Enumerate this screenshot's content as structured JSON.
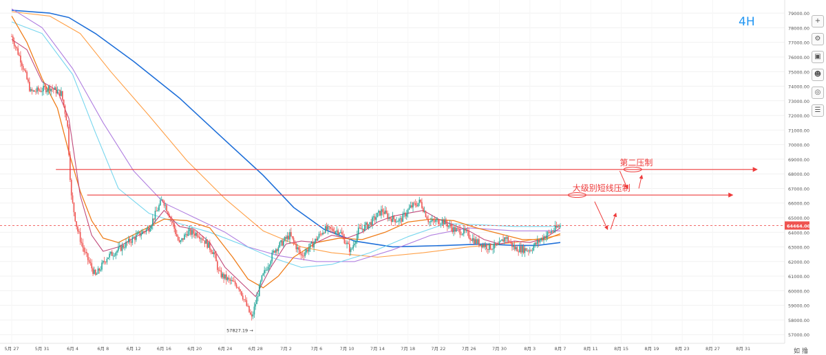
{
  "timeframe_label": "4H",
  "bottom_buttons": [
    "如",
    "撸"
  ],
  "chart_data": {
    "type": "candlestick",
    "title": "",
    "ylim": [
      56400,
      79900
    ],
    "y_ticks": [
      57000,
      58000,
      59000,
      60000,
      61000,
      62000,
      63000,
      64000,
      65000,
      66000,
      67000,
      68000,
      69000,
      70000,
      71000,
      72000,
      73000,
      74000,
      75000,
      76000,
      77000,
      78000,
      79000
    ],
    "y_tick_labels": [
      "57000.00",
      "58000.00",
      "59000.00",
      "60000.00",
      "61000.00",
      "62000.00",
      "63000.00",
      "64000.00",
      "65000.00",
      "66000.00",
      "67000.00",
      "68000.00",
      "69000.00",
      "70000.00",
      "71000.00",
      "72000.00",
      "73000.00",
      "74000.00",
      "75000.00",
      "76000.00",
      "77000.00",
      "78000.00",
      "79000.00"
    ],
    "x_tick_labels": [
      "5月 27",
      "5月 31",
      "6月 4",
      "6月 8",
      "6月 12",
      "6月 16",
      "6月 20",
      "6月 24",
      "6月 28",
      "7月 2",
      "7月 6",
      "7月 10",
      "7月 14",
      "7月 18",
      "7月 22",
      "7月 26",
      "7月 30",
      "8月 3",
      "8月 7",
      "8月 11",
      "8月 15",
      "8月 19",
      "8月 23",
      "8月 27",
      "8月 31"
    ],
    "x_tick_offsets_days": [
      0,
      4,
      8,
      12,
      16,
      20,
      24,
      28,
      32,
      36,
      40,
      44,
      48,
      52,
      56,
      60,
      64,
      68,
      72,
      76,
      80,
      84,
      88,
      92,
      96
    ],
    "last_day": 72,
    "current_price": 64464,
    "current_price_label": "64464.00",
    "low_marker": {
      "label": "57827.19 →",
      "price": 57827.19,
      "day": 31.5
    },
    "price_path": [
      [
        0,
        77400
      ],
      [
        1.2,
        75800
      ],
      [
        2.5,
        73600
      ],
      [
        3.5,
        73700
      ],
      [
        5,
        73900
      ],
      [
        6.5,
        73500
      ],
      [
        7.3,
        71500
      ],
      [
        7.8,
        66500
      ],
      [
        8.6,
        64200
      ],
      [
        9.5,
        62700
      ],
      [
        11,
        61000
      ],
      [
        12.5,
        62300
      ],
      [
        14,
        62800
      ],
      [
        16,
        63600
      ],
      [
        18,
        64300
      ],
      [
        19.8,
        66300
      ],
      [
        21,
        64800
      ],
      [
        22,
        63200
      ],
      [
        23,
        64000
      ],
      [
        24.5,
        63900
      ],
      [
        25.5,
        63300
      ],
      [
        26.5,
        62600
      ],
      [
        27.2,
        61200
      ],
      [
        28.5,
        60700
      ],
      [
        29.8,
        60300
      ],
      [
        31.5,
        58100
      ],
      [
        32.8,
        60800
      ],
      [
        34.5,
        62800
      ],
      [
        36.5,
        63800
      ],
      [
        38,
        62400
      ],
      [
        39.5,
        63200
      ],
      [
        41,
        64200
      ],
      [
        43,
        64100
      ],
      [
        44.5,
        62700
      ],
      [
        45.5,
        64100
      ],
      [
        47,
        64600
      ],
      [
        48.6,
        65500
      ],
      [
        49.5,
        65000
      ],
      [
        51,
        64800
      ],
      [
        52.3,
        65700
      ],
      [
        53.6,
        66100
      ],
      [
        54.8,
        64700
      ],
      [
        56.5,
        64800
      ],
      [
        58,
        64200
      ],
      [
        59.5,
        64000
      ],
      [
        60.8,
        63400
      ],
      [
        62.5,
        63000
      ],
      [
        63.8,
        63000
      ],
      [
        64.8,
        63700
      ],
      [
        66,
        62900
      ],
      [
        68,
        62800
      ],
      [
        69.8,
        63700
      ],
      [
        72,
        64464
      ]
    ],
    "moving_averages": [
      {
        "color": "#1e6fd9",
        "width": 1.6,
        "path": [
          [
            0,
            79200
          ],
          [
            5,
            79000
          ],
          [
            7.5,
            78700
          ],
          [
            11,
            77600
          ],
          [
            16,
            75700
          ],
          [
            22,
            73200
          ],
          [
            28,
            70300
          ],
          [
            33,
            67900
          ],
          [
            37,
            65700
          ],
          [
            41,
            64200
          ],
          [
            45,
            63400
          ],
          [
            50,
            63000
          ],
          [
            57,
            63100
          ],
          [
            62,
            63200
          ],
          [
            66,
            63100
          ],
          [
            69,
            63100
          ],
          [
            72,
            63300
          ]
        ]
      },
      {
        "color": "#ff9f45",
        "width": 1.1,
        "path": [
          [
            0,
            79100
          ],
          [
            5,
            78800
          ],
          [
            9,
            77600
          ],
          [
            13,
            75000
          ],
          [
            18,
            72000
          ],
          [
            23,
            68900
          ],
          [
            28,
            66300
          ],
          [
            33,
            64100
          ],
          [
            38,
            63000
          ],
          [
            42,
            62600
          ],
          [
            48,
            62300
          ],
          [
            54,
            62600
          ],
          [
            60,
            63000
          ],
          [
            66,
            63300
          ],
          [
            72,
            63800
          ]
        ]
      },
      {
        "color": "#b07ee0",
        "width": 1.1,
        "path": [
          [
            0,
            79300
          ],
          [
            4,
            78000
          ],
          [
            8,
            75200
          ],
          [
            12,
            71500
          ],
          [
            16,
            68200
          ],
          [
            20,
            66000
          ],
          [
            24,
            65000
          ],
          [
            28,
            64000
          ],
          [
            31,
            63000
          ],
          [
            35,
            62400
          ],
          [
            40,
            62000
          ],
          [
            45,
            62000
          ],
          [
            50,
            62800
          ],
          [
            55,
            63800
          ],
          [
            60,
            64300
          ],
          [
            66,
            64100
          ],
          [
            72,
            64100
          ]
        ]
      },
      {
        "color": "#76d6ee",
        "width": 1.1,
        "path": [
          [
            0,
            78400
          ],
          [
            4,
            77600
          ],
          [
            8,
            74800
          ],
          [
            11,
            70800
          ],
          [
            14,
            67000
          ],
          [
            18,
            65300
          ],
          [
            22,
            64600
          ],
          [
            26,
            64000
          ],
          [
            30,
            63200
          ],
          [
            34,
            62300
          ],
          [
            38,
            61600
          ],
          [
            42,
            61800
          ],
          [
            47,
            62600
          ],
          [
            52,
            63700
          ],
          [
            57,
            64600
          ],
          [
            62,
            64500
          ],
          [
            66,
            64400
          ],
          [
            72,
            64400
          ]
        ]
      },
      {
        "color": "#ef7c18",
        "width": 1.3,
        "path": [
          [
            0,
            78800
          ],
          [
            2,
            77000
          ],
          [
            4,
            74500
          ],
          [
            6,
            72500
          ],
          [
            7.5,
            69500
          ],
          [
            9,
            66800
          ],
          [
            10.5,
            64800
          ],
          [
            12,
            63600
          ],
          [
            14,
            63300
          ],
          [
            17,
            64100
          ],
          [
            20,
            64900
          ],
          [
            23,
            64800
          ],
          [
            26,
            64300
          ],
          [
            29,
            62300
          ],
          [
            31,
            60800
          ],
          [
            33,
            60200
          ],
          [
            35,
            61000
          ],
          [
            37,
            62300
          ],
          [
            40,
            63300
          ],
          [
            43,
            63600
          ],
          [
            46,
            63500
          ],
          [
            49,
            64000
          ],
          [
            52,
            64700
          ],
          [
            55,
            64900
          ],
          [
            58,
            64800
          ],
          [
            61,
            64300
          ],
          [
            64,
            63900
          ],
          [
            67,
            63500
          ],
          [
            70,
            63500
          ],
          [
            72,
            63900
          ]
        ]
      },
      {
        "color": "#c0487a",
        "width": 1.1,
        "path": [
          [
            0,
            77200
          ],
          [
            2,
            76500
          ],
          [
            4,
            74300
          ],
          [
            6,
            73700
          ],
          [
            7.5,
            71800
          ],
          [
            9,
            66500
          ],
          [
            10.5,
            63800
          ],
          [
            12,
            62700
          ],
          [
            14,
            63000
          ],
          [
            16,
            63600
          ],
          [
            18,
            64200
          ],
          [
            20,
            65500
          ],
          [
            22,
            64400
          ],
          [
            24,
            64200
          ],
          [
            26,
            63300
          ],
          [
            28,
            61600
          ],
          [
            30,
            60600
          ],
          [
            32,
            59600
          ],
          [
            34,
            61600
          ],
          [
            36,
            63200
          ],
          [
            38,
            63400
          ],
          [
            40,
            63300
          ],
          [
            42,
            63800
          ],
          [
            44,
            63600
          ],
          [
            46,
            64000
          ],
          [
            48,
            64700
          ],
          [
            50,
            65100
          ],
          [
            52,
            65300
          ],
          [
            54,
            65500
          ],
          [
            56,
            64900
          ],
          [
            58,
            64500
          ],
          [
            60,
            64100
          ],
          [
            62,
            63500
          ],
          [
            64,
            63200
          ],
          [
            66,
            63400
          ],
          [
            68,
            63300
          ],
          [
            70,
            63600
          ],
          [
            72,
            64300
          ]
        ]
      }
    ],
    "horizontal_lines": [
      {
        "price": 68300,
        "label": "第二压制",
        "color": "#ee3b3b",
        "start_day": 5.8,
        "end_day": 97.8,
        "label_day": 79.8,
        "ellipse_day": 81.5
      },
      {
        "price": 66550,
        "label": "大级别短线压制",
        "color": "#ee3b3b",
        "start_day": 9.9,
        "end_day": 94.6,
        "label_day": 73.6,
        "ellipse_day": 74.2
      }
    ],
    "annotation_arrows": [
      {
        "from": [
          76.5,
          66100
        ],
        "to": [
          78.2,
          64200
        ]
      },
      {
        "from": [
          78.6,
          64200
        ],
        "to": [
          79.3,
          65300
        ]
      },
      {
        "from": [
          79.8,
          68200
        ],
        "to": [
          80.8,
          67000
        ]
      },
      {
        "from": [
          82.3,
          67000
        ],
        "to": [
          82.7,
          67900
        ]
      }
    ]
  }
}
